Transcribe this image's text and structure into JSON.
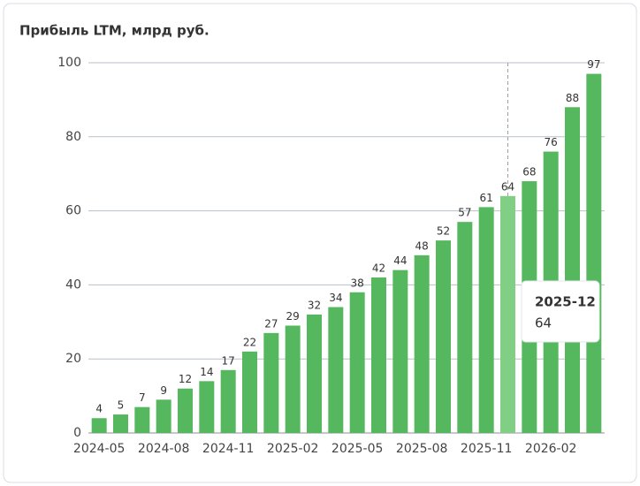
{
  "chart_data": {
    "type": "bar",
    "title": "Прибыль LTM, млрд руб.",
    "categories": [
      "2024-05",
      null,
      null,
      "2024-08",
      null,
      null,
      "2024-11",
      null,
      null,
      "2025-02",
      null,
      null,
      "2025-05",
      null,
      null,
      "2025-08",
      null,
      null,
      "2025-11",
      null,
      null,
      "2026-02",
      null,
      null
    ],
    "values": [
      4,
      5,
      7,
      9,
      12,
      14,
      17,
      22,
      27,
      29,
      32,
      34,
      38,
      42,
      44,
      48,
      52,
      57,
      61,
      64,
      68,
      76,
      88,
      97
    ],
    "color": "#56b85e",
    "highlight_color": "#80cf84",
    "highlight_index": 19,
    "ylim": [
      0,
      100
    ],
    "yticks": [
      0,
      20,
      40,
      60,
      80,
      100
    ],
    "grid": true,
    "tooltip": {
      "category": "2025-12",
      "value": 64
    }
  }
}
